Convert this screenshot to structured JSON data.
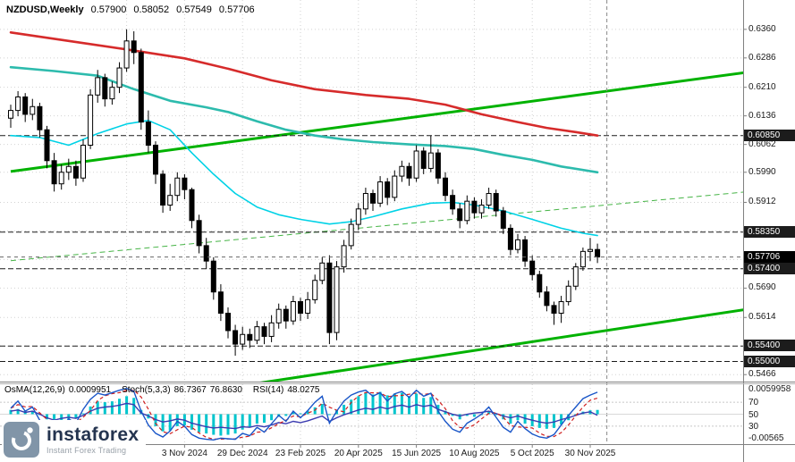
{
  "header": {
    "symbol_period": "NZDUSD,Weekly",
    "open": "0.57900",
    "high": "0.58052",
    "low": "0.57549",
    "close": "0.57706"
  },
  "indicator_labels": {
    "osma_name": "OsMA(12,26,9)",
    "osma_value": "0.0009951",
    "stoch_name": "Stoch(5,3,3)",
    "stoch_main": "86.7367",
    "stoch_signal": "76.8630",
    "rsi_name": "RSI(14)",
    "rsi_value": "48.0275"
  },
  "logo": {
    "brand": "instaforex",
    "tagline": "Instant Forex Trading"
  },
  "colors": {
    "background": "#ffffff",
    "grid": "#d2d2d2",
    "candle_up": "#ffffff",
    "candle_down": "#000000",
    "candle_outline": "#000000",
    "ma_red": "#d62b2b",
    "ma_teal": "#2dbbad",
    "ma_cyan": "#00d2e6",
    "trend_green": "#00b200",
    "trend_green_dashed": "#46b446",
    "level_line": "#1a1a1a",
    "level_box_bg": "#1c1c1c",
    "level_box_text": "#ffffff",
    "current_line": "#666666",
    "osma_bar": "#00c5cd",
    "stoch_main": "#1a56c8",
    "stoch_signal": "#d02020",
    "rsi_line": "#3b3bb0",
    "separator": "#808080",
    "vline": "#888888",
    "axis_text": "#1a1a1a"
  },
  "chart_data": {
    "type": "candlestick",
    "title": "NZDUSD Weekly chart with OsMA, Stochastic and RSI",
    "symbol": "NZDUSD",
    "timeframe": "Weekly",
    "x_axis": {
      "tick_labels": [
        "3 Nov 2024",
        "29 Dec 2024",
        "23 Feb 2025",
        "20 Apr 2025",
        "15 Jun 2025",
        "10 Aug 2025",
        "5 Oct 2025",
        "30 Nov 2025"
      ],
      "tick_indices": [
        24,
        32,
        40,
        48,
        56,
        64,
        72,
        80
      ],
      "grid_indices": [
        16,
        24,
        32,
        40,
        48,
        56,
        64,
        72,
        80
      ]
    },
    "y_axis": {
      "tick_labels": [
        "0.6360",
        "0.6286",
        "0.6210",
        "0.6136",
        "0.6062",
        "0.5990",
        "0.5912",
        "0.5690",
        "0.5614",
        "0.5466"
      ],
      "tick_values": [
        0.636,
        0.6286,
        0.621,
        0.6136,
        0.6062,
        0.599,
        0.5912,
        0.569,
        0.5614,
        0.5466
      ],
      "grid_values": [
        0.636,
        0.6286,
        0.621,
        0.6136,
        0.6062,
        0.599,
        0.5912,
        0.5838,
        0.5764,
        0.569,
        0.5614,
        0.554,
        0.5466
      ],
      "range": [
        0.5448,
        0.6436
      ]
    },
    "levels": [
      {
        "value": 0.6085,
        "label": "0.60850"
      },
      {
        "value": 0.5835,
        "label": "0.58350"
      },
      {
        "value": 0.574,
        "label": "0.57400"
      },
      {
        "value": 0.554,
        "label": "0.55400"
      },
      {
        "value": 0.55,
        "label": "0.55000"
      }
    ],
    "current_price": {
      "value": 0.57706,
      "label": "0.57706"
    },
    "separator_index": 82.3,
    "candles": [
      [
        0.613,
        0.6165,
        0.6105,
        0.615
      ],
      [
        0.615,
        0.62,
        0.6135,
        0.6185
      ],
      [
        0.6185,
        0.6195,
        0.612,
        0.614
      ],
      [
        0.614,
        0.618,
        0.6125,
        0.616
      ],
      [
        0.616,
        0.617,
        0.608,
        0.61
      ],
      [
        0.61,
        0.611,
        0.6,
        0.602
      ],
      [
        0.602,
        0.604,
        0.594,
        0.596
      ],
      [
        0.596,
        0.601,
        0.5945,
        0.599
      ],
      [
        0.599,
        0.6025,
        0.597,
        0.6005
      ],
      [
        0.6005,
        0.602,
        0.5955,
        0.5975
      ],
      [
        0.5975,
        0.6075,
        0.5965,
        0.606
      ],
      [
        0.606,
        0.6205,
        0.605,
        0.619
      ],
      [
        0.619,
        0.6255,
        0.617,
        0.6235
      ],
      [
        0.6235,
        0.6245,
        0.616,
        0.618
      ],
      [
        0.618,
        0.6225,
        0.6165,
        0.621
      ],
      [
        0.621,
        0.6275,
        0.6195,
        0.626
      ],
      [
        0.626,
        0.636,
        0.625,
        0.633
      ],
      [
        0.633,
        0.6355,
        0.627,
        0.63
      ],
      [
        0.63,
        0.631,
        0.61,
        0.612
      ],
      [
        0.612,
        0.615,
        0.604,
        0.606
      ],
      [
        0.606,
        0.607,
        0.596,
        0.5985
      ],
      [
        0.5985,
        0.5995,
        0.5885,
        0.5905
      ],
      [
        0.5905,
        0.596,
        0.589,
        0.593
      ],
      [
        0.593,
        0.599,
        0.5915,
        0.5975
      ],
      [
        0.5975,
        0.5985,
        0.592,
        0.5945
      ],
      [
        0.5945,
        0.595,
        0.5845,
        0.5865
      ],
      [
        0.5865,
        0.588,
        0.578,
        0.58
      ],
      [
        0.58,
        0.582,
        0.574,
        0.576
      ],
      [
        0.576,
        0.577,
        0.566,
        0.568
      ],
      [
        0.568,
        0.57,
        0.5605,
        0.5625
      ],
      [
        0.5625,
        0.564,
        0.556,
        0.558
      ],
      [
        0.558,
        0.5595,
        0.5515,
        0.5545
      ],
      [
        0.5545,
        0.559,
        0.553,
        0.557
      ],
      [
        0.557,
        0.5585,
        0.5535,
        0.5555
      ],
      [
        0.5555,
        0.5605,
        0.5545,
        0.559
      ],
      [
        0.559,
        0.56,
        0.5545,
        0.5565
      ],
      [
        0.5565,
        0.562,
        0.555,
        0.56
      ],
      [
        0.56,
        0.565,
        0.5585,
        0.5635
      ],
      [
        0.5635,
        0.5645,
        0.5585,
        0.5605
      ],
      [
        0.5605,
        0.567,
        0.5595,
        0.5655
      ],
      [
        0.5655,
        0.5665,
        0.5605,
        0.5625
      ],
      [
        0.5625,
        0.568,
        0.561,
        0.566
      ],
      [
        0.566,
        0.5725,
        0.565,
        0.571
      ],
      [
        0.571,
        0.577,
        0.57,
        0.5755
      ],
      [
        0.5755,
        0.5775,
        0.5545,
        0.5575
      ],
      [
        0.5575,
        0.576,
        0.5555,
        0.5745
      ],
      [
        0.5745,
        0.5815,
        0.573,
        0.58
      ],
      [
        0.58,
        0.587,
        0.579,
        0.5855
      ],
      [
        0.5855,
        0.591,
        0.584,
        0.5895
      ],
      [
        0.5895,
        0.595,
        0.588,
        0.5935
      ],
      [
        0.5935,
        0.5945,
        0.589,
        0.591
      ],
      [
        0.591,
        0.598,
        0.59,
        0.5965
      ],
      [
        0.5965,
        0.5975,
        0.5905,
        0.5925
      ],
      [
        0.5925,
        0.5995,
        0.5915,
        0.598
      ],
      [
        0.598,
        0.602,
        0.5965,
        0.6005
      ],
      [
        0.6005,
        0.6015,
        0.5955,
        0.5975
      ],
      [
        0.5975,
        0.606,
        0.5965,
        0.6045
      ],
      [
        0.6045,
        0.6055,
        0.5985,
        0.6
      ],
      [
        0.6,
        0.6085,
        0.599,
        0.604
      ],
      [
        0.604,
        0.605,
        0.596,
        0.5975
      ],
      [
        0.5975,
        0.599,
        0.5915,
        0.593
      ],
      [
        0.593,
        0.5945,
        0.588,
        0.5895
      ],
      [
        0.5895,
        0.591,
        0.5845,
        0.5865
      ],
      [
        0.5865,
        0.593,
        0.5855,
        0.5915
      ],
      [
        0.5915,
        0.5925,
        0.587,
        0.5885
      ],
      [
        0.5885,
        0.592,
        0.587,
        0.5905
      ],
      [
        0.5905,
        0.595,
        0.5895,
        0.5935
      ],
      [
        0.5935,
        0.5945,
        0.5875,
        0.589
      ],
      [
        0.589,
        0.59,
        0.583,
        0.5845
      ],
      [
        0.5845,
        0.5855,
        0.5775,
        0.579
      ],
      [
        0.579,
        0.583,
        0.578,
        0.5815
      ],
      [
        0.5815,
        0.5825,
        0.5745,
        0.576
      ],
      [
        0.576,
        0.5775,
        0.571,
        0.5725
      ],
      [
        0.5725,
        0.5735,
        0.5665,
        0.568
      ],
      [
        0.568,
        0.5695,
        0.563,
        0.5645
      ],
      [
        0.5645,
        0.5655,
        0.5595,
        0.5625
      ],
      [
        0.5625,
        0.567,
        0.56,
        0.5655
      ],
      [
        0.5655,
        0.571,
        0.5645,
        0.5695
      ],
      [
        0.5695,
        0.5755,
        0.5685,
        0.5745
      ],
      [
        0.5745,
        0.5795,
        0.5735,
        0.5785
      ],
      [
        0.5785,
        0.582,
        0.576,
        0.579
      ],
      [
        0.579,
        0.58052,
        0.57549,
        0.57706
      ]
    ],
    "ma_red": [
      [
        0,
        0.6352
      ],
      [
        8,
        0.633
      ],
      [
        16,
        0.6308
      ],
      [
        24,
        0.6285
      ],
      [
        30,
        0.6258
      ],
      [
        36,
        0.6228
      ],
      [
        42,
        0.6205
      ],
      [
        49,
        0.619
      ],
      [
        55,
        0.618
      ],
      [
        60,
        0.6165
      ],
      [
        65,
        0.614
      ],
      [
        70,
        0.612
      ],
      [
        74,
        0.6105
      ],
      [
        78,
        0.6094
      ],
      [
        81,
        0.6085
      ]
    ],
    "ma_teal": [
      [
        0,
        0.6262
      ],
      [
        6,
        0.6252
      ],
      [
        12,
        0.624
      ],
      [
        17,
        0.6205
      ],
      [
        22,
        0.6175
      ],
      [
        27,
        0.6158
      ],
      [
        30,
        0.6146
      ],
      [
        34,
        0.6122
      ],
      [
        38,
        0.61
      ],
      [
        42,
        0.6085
      ],
      [
        46,
        0.6075
      ],
      [
        50,
        0.6068
      ],
      [
        55,
        0.6062
      ],
      [
        60,
        0.6058
      ],
      [
        64,
        0.605
      ],
      [
        68,
        0.6035
      ],
      [
        72,
        0.6022
      ],
      [
        76,
        0.6005
      ],
      [
        81,
        0.599
      ]
    ],
    "ma_cyan": [
      [
        0,
        0.6085
      ],
      [
        4,
        0.608
      ],
      [
        8,
        0.606
      ],
      [
        12,
        0.609
      ],
      [
        16,
        0.6115
      ],
      [
        19,
        0.6124
      ],
      [
        22,
        0.61
      ],
      [
        25,
        0.604
      ],
      [
        28,
        0.5985
      ],
      [
        31,
        0.5935
      ],
      [
        34,
        0.59
      ],
      [
        37,
        0.588
      ],
      [
        40,
        0.5868
      ],
      [
        44,
        0.5856
      ],
      [
        47,
        0.5862
      ],
      [
        50,
        0.5875
      ],
      [
        54,
        0.5895
      ],
      [
        58,
        0.591
      ],
      [
        61,
        0.5912
      ],
      [
        64,
        0.5905
      ],
      [
        68,
        0.589
      ],
      [
        72,
        0.5868
      ],
      [
        76,
        0.5845
      ],
      [
        79,
        0.5832
      ],
      [
        81,
        0.5826
      ]
    ],
    "trendlines": [
      {
        "name": "major-rising-trendline",
        "style": "solid",
        "width": 3,
        "points": [
          [
            0,
            0.5992
          ],
          [
            110,
            0.627
          ]
        ]
      },
      {
        "name": "lower-support-trendline",
        "style": "solid",
        "width": 3,
        "points": [
          [
            30,
            0.5432
          ],
          [
            110,
            0.5659
          ]
        ]
      },
      {
        "name": "minor-rising-dashed-trendline",
        "style": "dashed",
        "width": 1,
        "points": [
          [
            0,
            0.5761
          ],
          [
            110,
            0.5954
          ]
        ]
      }
    ],
    "sub_chart": {
      "axis_labels": {
        "osma_max": "0.0059958",
        "level_70": "70",
        "level_50": "50",
        "level_30": "30",
        "osma_min": "-0.00565"
      },
      "osma_max_value": 0.0059958,
      "osma_min_value": -0.0056518,
      "levels": [
        70,
        50,
        30
      ],
      "osma": [
        0.001,
        0.0012,
        0.0008,
        0.0006,
        -0.0002,
        -0.0012,
        -0.002,
        -0.0018,
        -0.0012,
        -0.001,
        0.0002,
        0.0018,
        0.003,
        0.0028,
        0.003,
        0.0036,
        0.0042,
        0.0038,
        0.001,
        -0.001,
        -0.0028,
        -0.004,
        -0.0038,
        -0.0028,
        -0.0026,
        -0.0036,
        -0.0042,
        -0.0045,
        -0.0048,
        -0.005,
        -0.0048,
        -0.0045,
        -0.0036,
        -0.003,
        -0.0022,
        -0.002,
        -0.0014,
        -0.0006,
        -0.0004,
        0.0004,
        0.0002,
        0.0008,
        0.0016,
        0.0024,
        -0.0002,
        0.001,
        0.0022,
        0.0034,
        0.0042,
        0.005,
        0.0046,
        0.0052,
        0.0044,
        0.0048,
        0.005,
        0.0042,
        0.0048,
        0.0038,
        0.004,
        0.0022,
        0.0008,
        -0.0004,
        -0.0012,
        -0.0004,
        -0.0006,
        0.0,
        0.0006,
        -0.0002,
        -0.0012,
        -0.0022,
        -0.0014,
        -0.0022,
        -0.0028,
        -0.0032,
        -0.0034,
        -0.0032,
        -0.0024,
        -0.0014,
        -0.0002,
        0.0006,
        0.0009,
        0.0009951
      ],
      "stoch_k": [
        60,
        72,
        55,
        62,
        40,
        22,
        14,
        30,
        42,
        35,
        58,
        75,
        85,
        82,
        86,
        90,
        93,
        88,
        55,
        32,
        18,
        12,
        22,
        38,
        30,
        16,
        10,
        8,
        7,
        10,
        9,
        8,
        18,
        14,
        28,
        20,
        34,
        48,
        38,
        55,
        44,
        56,
        70,
        80,
        35,
        55,
        72,
        82,
        87,
        90,
        80,
        86,
        72,
        84,
        88,
        78,
        90,
        80,
        85,
        55,
        38,
        25,
        20,
        35,
        42,
        50,
        62,
        45,
        28,
        20,
        38,
        26,
        17,
        12,
        10,
        16,
        32,
        48,
        62,
        76,
        82,
        86.7367
      ],
      "stoch_d": [
        60,
        66,
        62.3,
        63,
        52.3,
        41.3,
        25.3,
        22,
        28.7,
        35.7,
        45,
        56,
        72.7,
        80.7,
        84.3,
        86,
        89.7,
        90.3,
        78.7,
        58.3,
        35,
        20.7,
        17.3,
        24,
        30,
        28,
        18.7,
        11.3,
        8.3,
        8.3,
        8.7,
        9,
        11.7,
        13.3,
        20,
        20.7,
        27.3,
        34,
        40,
        47,
        45.7,
        51.7,
        56.7,
        68.7,
        61.7,
        56.7,
        54,
        69.7,
        80.3,
        86.3,
        85.7,
        85.3,
        79.3,
        80.7,
        81.3,
        83.3,
        85.3,
        82.7,
        85,
        73.3,
        59.3,
        39.3,
        27.7,
        26.7,
        32.3,
        42.3,
        51.3,
        52.3,
        45,
        31,
        28.7,
        28,
        27,
        18.3,
        13,
        12.7,
        19.3,
        32,
        47.3,
        62,
        73.3,
        76.863
      ],
      "rsi": [
        55,
        57,
        53,
        55,
        50,
        44,
        40,
        43,
        45,
        43,
        48,
        55,
        60,
        62,
        63,
        65,
        68,
        66,
        52,
        47,
        41,
        37,
        39,
        42,
        40,
        35,
        32,
        29,
        27,
        28,
        27,
        26,
        29,
        28,
        31,
        29,
        32,
        36,
        34,
        38,
        36,
        39,
        43,
        47,
        38,
        44,
        49,
        53,
        57,
        60,
        58,
        62,
        59,
        63,
        65,
        62,
        66,
        63,
        65,
        58,
        54,
        50,
        47,
        50,
        52,
        53,
        55,
        51,
        47,
        44,
        47,
        43,
        40,
        37,
        35,
        37,
        41,
        44,
        48,
        52,
        54,
        48.0275
      ]
    }
  }
}
